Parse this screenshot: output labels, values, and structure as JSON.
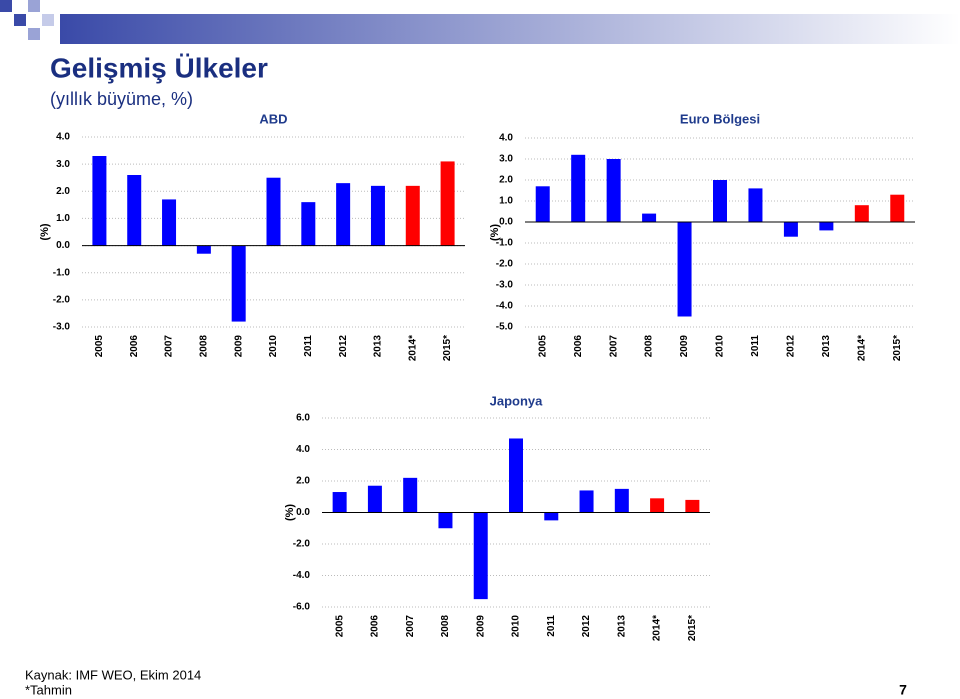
{
  "header": {
    "title": "Gelişmiş Ülkeler",
    "subtitle": "(yıllık büyüme, %)"
  },
  "chart_data": [
    {
      "type": "bar",
      "title": "ABD",
      "y_label": "(%)",
      "categories": [
        "2005",
        "2006",
        "2007",
        "2008",
        "2009",
        "2010",
        "2011",
        "2012",
        "2013",
        "2014*",
        "2015*"
      ],
      "values": [
        3.3,
        2.6,
        1.7,
        -0.3,
        -2.8,
        2.5,
        1.6,
        2.3,
        2.2,
        2.2,
        3.1
      ],
      "colors": [
        "#0000ff",
        "#0000ff",
        "#0000ff",
        "#0000ff",
        "#0000ff",
        "#0000ff",
        "#0000ff",
        "#0000ff",
        "#0000ff",
        "#ff0000",
        "#ff0000"
      ],
      "ylim": [
        -3,
        4
      ],
      "yticks": [
        {
          "value": -3,
          "label": "-3.0"
        },
        {
          "value": -2,
          "label": "-2.0"
        },
        {
          "value": -1,
          "label": "-1.0"
        },
        {
          "value": 0,
          "label": "0.0"
        },
        {
          "value": 1,
          "label": "1.0"
        },
        {
          "value": 2,
          "label": "2.0"
        },
        {
          "value": 3,
          "label": "3.0"
        },
        {
          "value": 4,
          "label": "4.0"
        }
      ],
      "grid": true
    },
    {
      "type": "bar",
      "title": "Euro Bölgesi",
      "y_label": "(%)",
      "categories": [
        "2005",
        "2006",
        "2007",
        "2008",
        "2009",
        "2010",
        "2011",
        "2012",
        "2013",
        "2014*",
        "2015*"
      ],
      "values": [
        1.7,
        3.2,
        3.0,
        0.4,
        -4.5,
        2.0,
        1.6,
        -0.7,
        -0.4,
        0.8,
        1.3
      ],
      "colors": [
        "#0000ff",
        "#0000ff",
        "#0000ff",
        "#0000ff",
        "#0000ff",
        "#0000ff",
        "#0000ff",
        "#0000ff",
        "#0000ff",
        "#ff0000",
        "#ff0000"
      ],
      "ylim": [
        -5,
        4
      ],
      "yticks": [
        {
          "value": -5,
          "label": "-5.0"
        },
        {
          "value": -4,
          "label": "-4.0"
        },
        {
          "value": -3,
          "label": "-3.0"
        },
        {
          "value": -2,
          "label": "-2.0"
        },
        {
          "value": -1,
          "label": "-1.0"
        },
        {
          "value": 0,
          "label": "0.0"
        },
        {
          "value": 1,
          "label": "1.0"
        },
        {
          "value": 2,
          "label": "2.0"
        },
        {
          "value": 3,
          "label": "3.0"
        },
        {
          "value": 4,
          "label": "4.0"
        }
      ],
      "grid": true
    },
    {
      "type": "bar",
      "title": "Japonya",
      "y_label": "(%)",
      "categories": [
        "2005",
        "2006",
        "2007",
        "2008",
        "2009",
        "2010",
        "2011",
        "2012",
        "2013",
        "2014*",
        "2015*"
      ],
      "values": [
        1.3,
        1.7,
        2.2,
        -1.0,
        -5.5,
        4.7,
        -0.5,
        1.4,
        1.5,
        0.9,
        0.8
      ],
      "colors": [
        "#0000ff",
        "#0000ff",
        "#0000ff",
        "#0000ff",
        "#0000ff",
        "#0000ff",
        "#0000ff",
        "#0000ff",
        "#0000ff",
        "#ff0000",
        "#ff0000"
      ],
      "ylim": [
        -6,
        6
      ],
      "yticks": [
        {
          "value": -6,
          "label": "-6.0"
        },
        {
          "value": -4,
          "label": "-4.0"
        },
        {
          "value": -2,
          "label": "-2.0"
        },
        {
          "value": 0,
          "label": "0.0"
        },
        {
          "value": 2,
          "label": "2.0"
        },
        {
          "value": 4,
          "label": "4.0"
        },
        {
          "value": 6,
          "label": "6.0"
        }
      ],
      "grid": true
    }
  ],
  "footer": {
    "source": "Kaynak: IMF WEO, Ekim 2014",
    "note": "*Tahmin",
    "page": "7"
  }
}
